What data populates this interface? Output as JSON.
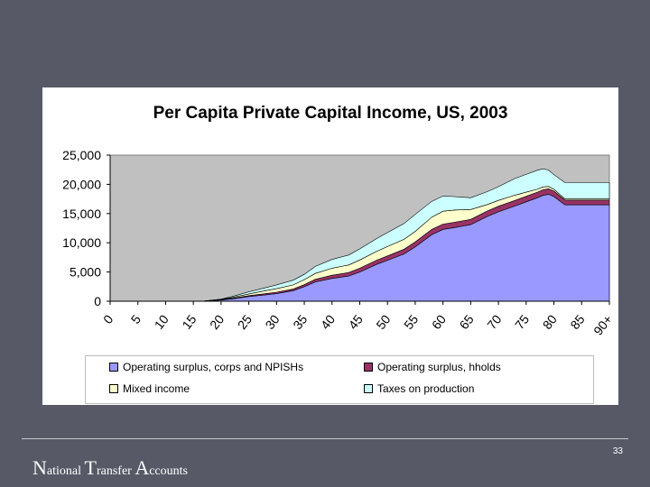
{
  "chart_data": {
    "type": "area",
    "stacked": true,
    "title": "Per Capita Private Capital Income, US, 2003",
    "xlabel": "",
    "ylabel": "",
    "ylim": [
      0,
      25000
    ],
    "yticks": [
      0,
      5000,
      10000,
      15000,
      20000,
      25000
    ],
    "ytick_labels": [
      "0",
      "5,000",
      "10,000",
      "15,000",
      "20,000",
      "25,000"
    ],
    "xticks": [
      0,
      5,
      10,
      15,
      20,
      25,
      30,
      35,
      40,
      45,
      50,
      55,
      60,
      65,
      70,
      75,
      80,
      85,
      90
    ],
    "xtick_labels": [
      "0",
      "5",
      "10",
      "15",
      "20",
      "25",
      "30",
      "35",
      "40",
      "45",
      "50",
      "55",
      "60",
      "65",
      "70",
      "75",
      "80",
      "85",
      "90+"
    ],
    "xlim": [
      0,
      90
    ],
    "x": [
      0,
      15,
      17,
      20,
      22,
      25,
      28,
      30,
      33,
      35,
      37,
      40,
      43,
      45,
      48,
      50,
      53,
      55,
      58,
      60,
      62,
      65,
      68,
      70,
      73,
      75,
      77,
      78,
      79,
      80,
      82,
      85,
      88,
      90
    ],
    "series": [
      {
        "name": "Operating surplus, corps and NPISHs",
        "color": "#9999ff",
        "values": [
          0,
          0,
          50,
          200,
          400,
          800,
          1100,
          1300,
          1800,
          2500,
          3300,
          3900,
          4300,
          5000,
          6300,
          7000,
          8100,
          9300,
          11400,
          12300,
          12600,
          13100,
          14500,
          15300,
          16300,
          17000,
          17700,
          18100,
          18300,
          17900,
          16500,
          16500,
          16500,
          16500
        ]
      },
      {
        "name": "Operating surplus, hholds",
        "color": "#993366",
        "values": [
          0,
          0,
          0,
          50,
          100,
          150,
          200,
          250,
          300,
          350,
          450,
          550,
          600,
          650,
          700,
          750,
          800,
          850,
          900,
          900,
          900,
          900,
          950,
          950,
          950,
          950,
          950,
          950,
          950,
          950,
          800,
          800,
          800,
          800
        ]
      },
      {
        "name": "Mixed income",
        "color": "#ffffcc",
        "values": [
          0,
          0,
          0,
          50,
          150,
          300,
          500,
          600,
          700,
          850,
          1000,
          1200,
          1300,
          1400,
          1500,
          1600,
          1700,
          1800,
          2100,
          2200,
          2100,
          1700,
          1100,
          1000,
          900,
          700,
          500,
          500,
          400,
          300,
          200,
          200,
          200,
          200
        ]
      },
      {
        "name": "Taxes on production",
        "color": "#ccffff",
        "values": [
          0,
          0,
          0,
          50,
          150,
          350,
          500,
          650,
          800,
          900,
          1200,
          1500,
          1700,
          1900,
          2200,
          2400,
          2700,
          2900,
          2700,
          2600,
          2300,
          2000,
          2200,
          2350,
          2850,
          3050,
          3250,
          3100,
          2800,
          2500,
          2800,
          2800,
          2800,
          2800
        ]
      }
    ],
    "grid": false,
    "legend": "bottom",
    "plot_background": "#c0c0c0"
  },
  "footer": {
    "brand": [
      {
        "cap": "N",
        "rest": "ational "
      },
      {
        "cap": "T",
        "rest": "ransfer "
      },
      {
        "cap": "A",
        "rest": "ccounts"
      }
    ],
    "page_number": "33"
  }
}
